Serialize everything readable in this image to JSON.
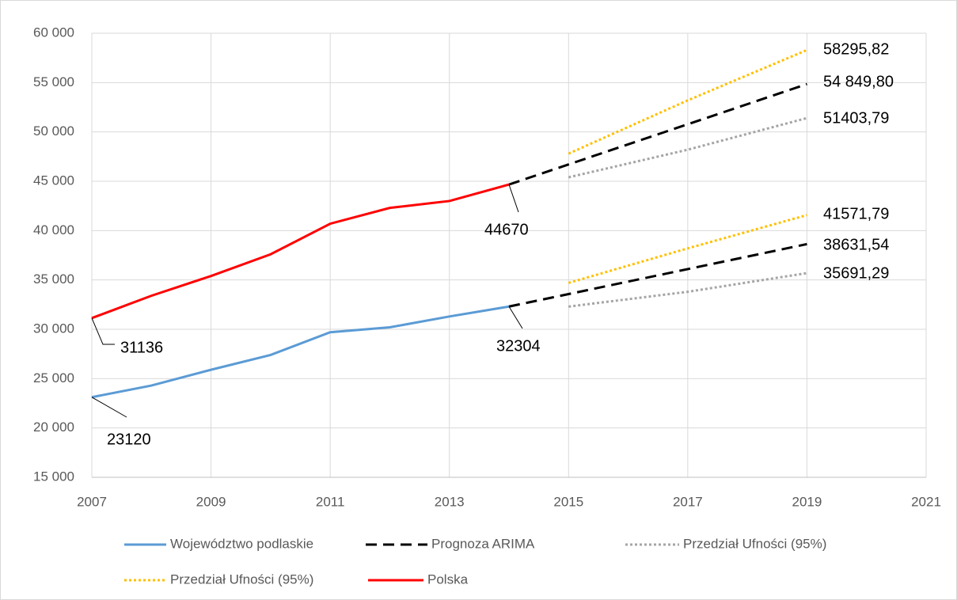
{
  "chart_data": {
    "type": "line",
    "xlim": [
      2007,
      2021
    ],
    "xticks": [
      2007,
      2009,
      2011,
      2013,
      2015,
      2017,
      2019,
      2021
    ],
    "ylim": [
      15000,
      60000
    ],
    "yticks": [
      {
        "value": 15000,
        "label": "15 000"
      },
      {
        "value": 20000,
        "label": "20 000"
      },
      {
        "value": 25000,
        "label": "25 000"
      },
      {
        "value": 30000,
        "label": "30 000"
      },
      {
        "value": 35000,
        "label": "35 000"
      },
      {
        "value": 40000,
        "label": "40 000"
      },
      {
        "value": 45000,
        "label": "45 000"
      },
      {
        "value": 50000,
        "label": "50 000"
      },
      {
        "value": 55000,
        "label": "55 000"
      },
      {
        "value": 60000,
        "label": "60 000"
      }
    ],
    "grid": true,
    "legend": "bottom",
    "series": [
      {
        "name": "Województwo podlaskie",
        "color": "#5b9bd5",
        "style": "solid",
        "x": [
          2007,
          2008,
          2009,
          2010,
          2011,
          2012,
          2013,
          2014
        ],
        "values": [
          23120,
          24300,
          25900,
          27400,
          29700,
          30200,
          31300,
          32304
        ],
        "value_labels": [
          "23120",
          null,
          null,
          null,
          null,
          null,
          null,
          "32304"
        ]
      },
      {
        "name": "Prognoza ARIMA",
        "color": "#000000",
        "style": "dashed",
        "x": [
          2014,
          2019,
          2019,
          2014,
          2019
        ],
        "values": [
          32304,
          38631.54,
          null,
          44670,
          54849.8
        ],
        "value_labels": [
          null,
          "38631,54",
          null,
          null,
          "54 849,80"
        ]
      },
      {
        "name": "Przedział Ufności (95%)",
        "color": "#a5a5a5",
        "style": "dotted",
        "x": [
          2015,
          2017,
          2019,
          2019,
          2015,
          2017,
          2019
        ],
        "values": [
          32300,
          33800,
          35691.29,
          null,
          45400,
          48200,
          51403.79
        ],
        "value_labels": [
          null,
          null,
          "35691,29",
          null,
          null,
          null,
          "51403,79"
        ]
      },
      {
        "name": "Przedział Ufności (95%)",
        "color": "#ffc000",
        "style": "dotted",
        "x": [
          2015,
          2017,
          2019,
          2019,
          2015,
          2017,
          2019
        ],
        "values": [
          34700,
          38200,
          41571.79,
          null,
          47800,
          53200,
          58295.82
        ],
        "value_labels": [
          null,
          null,
          "41571,79",
          null,
          null,
          null,
          "58295,82"
        ]
      },
      {
        "name": "Polska",
        "color": "#ff0000",
        "style": "solid",
        "x": [
          2007,
          2008,
          2009,
          2010,
          2011,
          2012,
          2013,
          2014
        ],
        "values": [
          31136,
          33400,
          35400,
          37600,
          40700,
          42300,
          43000,
          44670
        ],
        "value_labels": [
          "31136",
          null,
          null,
          null,
          null,
          null,
          null,
          "44670"
        ]
      }
    ]
  }
}
